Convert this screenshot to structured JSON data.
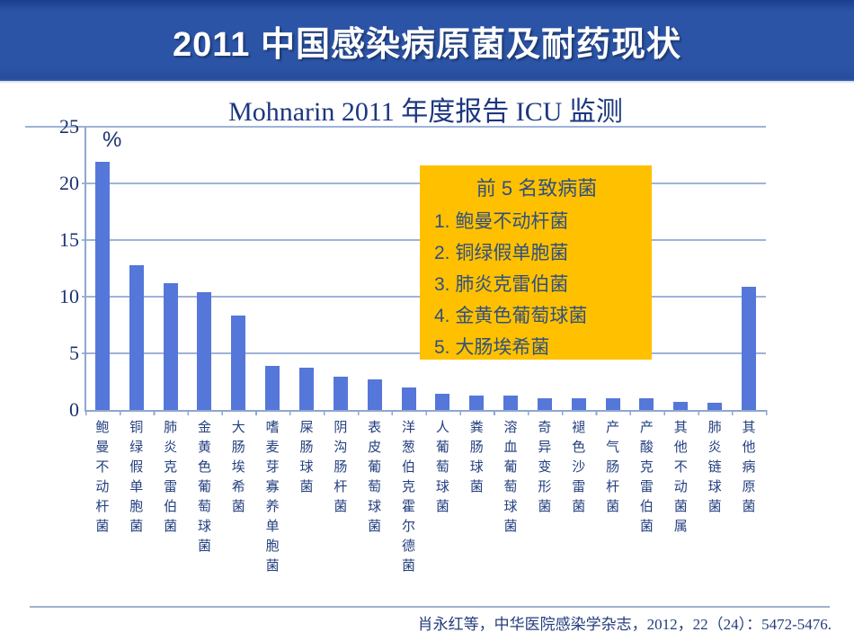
{
  "slide": {
    "header": {
      "title": "2011 中国感染病原菌及耐药现状",
      "bg_color": "#2B54A6",
      "text_color": "#FFFFFF"
    },
    "callout": {
      "title": "前 5 名致病菌",
      "items": [
        "1. 鲍曼不动杆菌",
        "2. 铜绿假单胞菌",
        "3. 肺炎克雷伯菌",
        "4. 金黄色葡萄球菌",
        "5. 大肠埃希菌"
      ],
      "bg_color": "#FFC000",
      "text_color": "#31507E"
    },
    "footer": {
      "citation": "肖永红等，中华医院感染学杂志，2012，22（24）：5472-5476."
    }
  },
  "chart_data": {
    "type": "bar",
    "title": "Mohnarin 2011 年度报告 ICU 监测",
    "ylabel": "%",
    "xlabel": "",
    "categories": [
      "鲍曼不动杆菌",
      "铜绿假单胞菌",
      "肺炎克雷伯菌",
      "金黄色葡萄球菌",
      "大肠埃希菌",
      "嗜麦芽寡养单胞菌",
      "屎肠球菌",
      "阴沟肠杆菌",
      "表皮葡萄球菌",
      "洋葱伯克霍尔德菌",
      "人葡萄球菌",
      "粪肠球菌",
      "溶血葡萄球菌",
      "奇异变形菌",
      "褪色沙雷菌",
      "产气肠杆菌",
      "产酸克雷伯菌",
      "其他不动菌属",
      "肺炎链球菌",
      "其他病原菌"
    ],
    "values": [
      21.9,
      12.8,
      11.2,
      10.4,
      8.3,
      3.9,
      3.7,
      2.9,
      2.7,
      2.0,
      1.4,
      1.3,
      1.3,
      1.0,
      1.0,
      1.0,
      1.0,
      0.7,
      0.6,
      10.9
    ],
    "ylim": [
      0,
      25
    ],
    "yticks": [
      0,
      5,
      10,
      15,
      20,
      25
    ],
    "grid": true,
    "legend": false,
    "bar_color": "#5577D9",
    "axis_color": "#8FA6D0",
    "grid_color": "#9FB3D9",
    "label_color": "#24407F"
  }
}
